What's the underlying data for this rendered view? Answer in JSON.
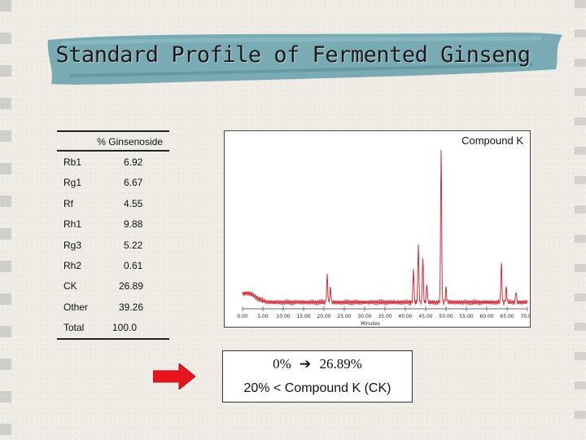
{
  "slide": {
    "title": "Standard Profile of Fermented Ginseng"
  },
  "table": {
    "header": "% Ginsenoside",
    "rows": [
      {
        "name": "Rb1",
        "value": "6.92"
      },
      {
        "name": "Rg1",
        "value": "6.67"
      },
      {
        "name": "Rf",
        "value": "4.55"
      },
      {
        "name": "Rh1",
        "value": "9.88"
      },
      {
        "name": "Rg3",
        "value": "5.22"
      },
      {
        "name": "Rh2",
        "value": "0.61"
      },
      {
        "name": "CK",
        "value": "26.89"
      },
      {
        "name": "Other",
        "value": "39.26"
      },
      {
        "name": "Total",
        "value": "100.0"
      }
    ]
  },
  "chromatogram": {
    "peak_label": "Compound K",
    "x_label": "Minutes",
    "x_ticks": [
      "0.00",
      "5.00",
      "10.00",
      "15.00",
      "20.00",
      "25.00",
      "30.00",
      "35.00",
      "40.00",
      "45.00",
      "50.00",
      "55.00",
      "60.00",
      "65.00",
      "70.00"
    ],
    "x_range": [
      0,
      70
    ],
    "trace_color": "#d0303a",
    "peaks": [
      {
        "x": 20.8,
        "h": 0.18
      },
      {
        "x": 21.6,
        "h": 0.1
      },
      {
        "x": 42.0,
        "h": 0.22
      },
      {
        "x": 43.2,
        "h": 0.38
      },
      {
        "x": 44.3,
        "h": 0.3
      },
      {
        "x": 45.3,
        "h": 0.12
      },
      {
        "x": 48.8,
        "h": 1.0
      },
      {
        "x": 50.0,
        "h": 0.1
      },
      {
        "x": 63.6,
        "h": 0.26
      },
      {
        "x": 64.8,
        "h": 0.1
      },
      {
        "x": 67.2,
        "h": 0.07
      }
    ]
  },
  "conclusion": {
    "line1_left": "0%",
    "line1_right": "26.89%",
    "line2": "20% < Compound K (CK)",
    "arrow_color": "#e8141c"
  }
}
